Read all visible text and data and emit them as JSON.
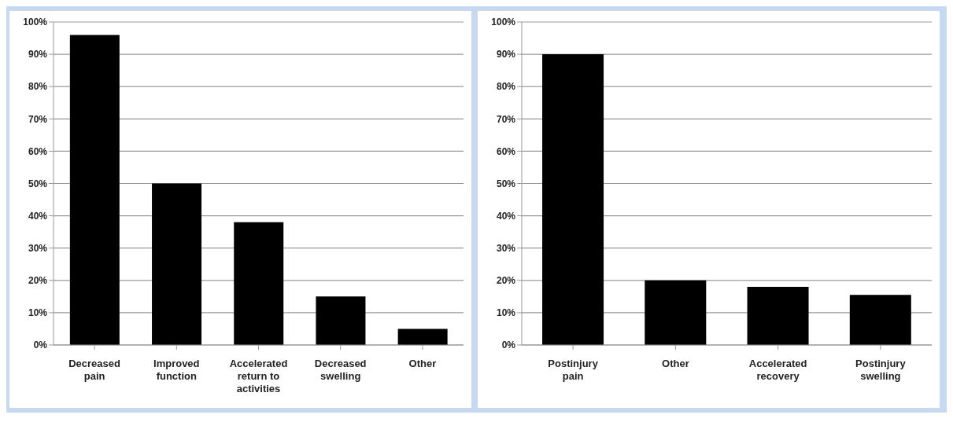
{
  "chart_data": [
    {
      "type": "bar",
      "categories": [
        "Decreased pain",
        "Improved function",
        "Accelerated return to activities",
        "Decreased swelling",
        "Other"
      ],
      "values": [
        96,
        50,
        38,
        15,
        5
      ],
      "color": "#000000",
      "ylim": [
        0,
        100
      ],
      "yticks": [
        {
          "value": 0,
          "label": "0%"
        },
        {
          "value": 10,
          "label": "10%"
        },
        {
          "value": 20,
          "label": "20%"
        },
        {
          "value": 30,
          "label": "30%"
        },
        {
          "value": 40,
          "label": "40%"
        },
        {
          "value": 50,
          "label": "50%"
        },
        {
          "value": 60,
          "label": "60%"
        },
        {
          "value": 70,
          "label": "70%"
        },
        {
          "value": 80,
          "label": "80%"
        },
        {
          "value": 90,
          "label": "90%"
        },
        {
          "value": 100,
          "label": "100%"
        }
      ],
      "grid": "y"
    },
    {
      "type": "bar",
      "categories": [
        "Postinjury pain",
        "Other",
        "Accelerated recovery",
        "Postinjury swelling"
      ],
      "values": [
        90,
        20,
        18,
        15.5
      ],
      "color": "#000000",
      "ylim": [
        0,
        100
      ],
      "yticks": [
        {
          "value": 0,
          "label": "0%"
        },
        {
          "value": 10,
          "label": "10%"
        },
        {
          "value": 20,
          "label": "20%"
        },
        {
          "value": 30,
          "label": "30%"
        },
        {
          "value": 40,
          "label": "40%"
        },
        {
          "value": 50,
          "label": "50%"
        },
        {
          "value": 60,
          "label": "60%"
        },
        {
          "value": 70,
          "label": "70%"
        },
        {
          "value": 80,
          "label": "80%"
        },
        {
          "value": 90,
          "label": "90%"
        },
        {
          "value": 100,
          "label": "100%"
        }
      ],
      "grid": "y"
    }
  ]
}
